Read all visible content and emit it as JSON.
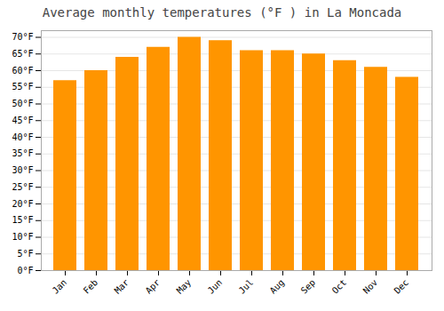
{
  "chart_data": {
    "type": "bar",
    "title": "Average monthly temperatures (°F ) in La Moncada",
    "categories": [
      "Jan",
      "Feb",
      "Mar",
      "Apr",
      "May",
      "Jun",
      "Jul",
      "Aug",
      "Sep",
      "Oct",
      "Nov",
      "Dec"
    ],
    "values": [
      57,
      60,
      64,
      67,
      70,
      69,
      66,
      66,
      65,
      63,
      61,
      58
    ],
    "color": "#FF9500",
    "ylim": [
      0,
      72
    ],
    "yticks": [
      {
        "value": 0,
        "label": "0°F"
      },
      {
        "value": 5,
        "label": "5°F"
      },
      {
        "value": 10,
        "label": "10°F"
      },
      {
        "value": 15,
        "label": "15°F"
      },
      {
        "value": 20,
        "label": "20°F"
      },
      {
        "value": 25,
        "label": "25°F"
      },
      {
        "value": 30,
        "label": "30°F"
      },
      {
        "value": 35,
        "label": "35°F"
      },
      {
        "value": 40,
        "label": "40°F"
      },
      {
        "value": 45,
        "label": "45°F"
      },
      {
        "value": 50,
        "label": "50°F"
      },
      {
        "value": 55,
        "label": "55°F"
      },
      {
        "value": 60,
        "label": "60°F"
      },
      {
        "value": 65,
        "label": "65°F"
      },
      {
        "value": 70,
        "label": "70°F"
      }
    ],
    "grid": true
  }
}
